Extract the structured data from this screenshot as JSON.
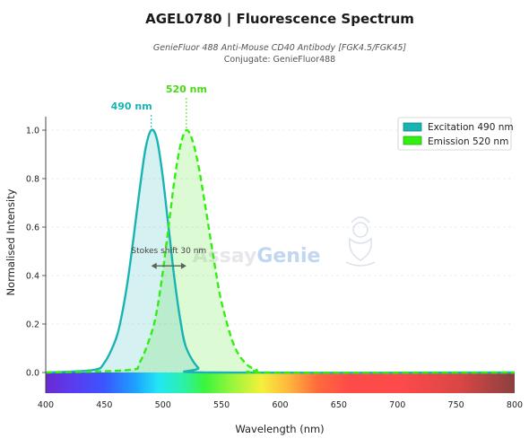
{
  "title": "AGEL0780  |  Fluorescence Spectrum",
  "subtitle": "GenieFluor 488 Anti-Mouse CD40 Antibody [FGK4.5/FGK45]",
  "conjugate": "Conjugate: GenieFluor488",
  "watermark": {
    "prefix": "Assay",
    "suffix": "Genie"
  },
  "colors": {
    "excitation": "#1ab3b3",
    "emission": "#33ee11",
    "excitation_label": "#1ab3b3",
    "emission_label": "#44dd11",
    "arrow": "#556655"
  },
  "chart_data": {
    "type": "area",
    "xlabel": "Wavelength (nm)",
    "ylabel": "Normalised Intensity",
    "xlim": [
      400,
      800
    ],
    "ylim": [
      0,
      1.0
    ],
    "xticks": [
      400,
      450,
      500,
      550,
      600,
      650,
      700,
      750,
      800
    ],
    "yticks": [
      0.0,
      0.2,
      0.4,
      0.6,
      0.8,
      1.0
    ],
    "xtick_labels": [
      "400",
      "450",
      "500",
      "550",
      "600",
      "650",
      "700",
      "750",
      "800"
    ],
    "ytick_labels": [
      "0.0",
      "0.2",
      "0.4",
      "0.6",
      "0.8",
      "1.0"
    ],
    "grid": true,
    "legend_position": "top-right",
    "spectrum_bar": true,
    "series": [
      {
        "name": "Excitation",
        "legend_label": "Excitation  490 nm",
        "peak": 490,
        "peak_label": "490 nm",
        "style": "solid",
        "x": [
          440,
          450,
          460,
          465,
          470,
          475,
          480,
          485,
          490,
          495,
          500,
          505,
          510,
          515,
          520,
          530,
          540
        ],
        "y": [
          0.01,
          0.04,
          0.14,
          0.24,
          0.38,
          0.56,
          0.75,
          0.92,
          1.0,
          0.96,
          0.8,
          0.59,
          0.38,
          0.21,
          0.1,
          0.02,
          0.0
        ]
      },
      {
        "name": "Emission",
        "legend_label": "Emission  520 nm",
        "peak": 520,
        "peak_label": "520 nm",
        "style": "dashed",
        "x": [
          470,
          480,
          490,
          495,
          500,
          505,
          510,
          515,
          520,
          525,
          530,
          535,
          540,
          545,
          550,
          560,
          570,
          580,
          590
        ],
        "y": [
          0.01,
          0.04,
          0.16,
          0.26,
          0.42,
          0.61,
          0.8,
          0.94,
          1.0,
          0.96,
          0.86,
          0.72,
          0.57,
          0.42,
          0.29,
          0.12,
          0.04,
          0.01,
          0.0
        ]
      }
    ],
    "annotations": [
      {
        "text": "Stokes shift  30 nm",
        "from": 490,
        "to": 520,
        "y": 0.44
      }
    ]
  }
}
